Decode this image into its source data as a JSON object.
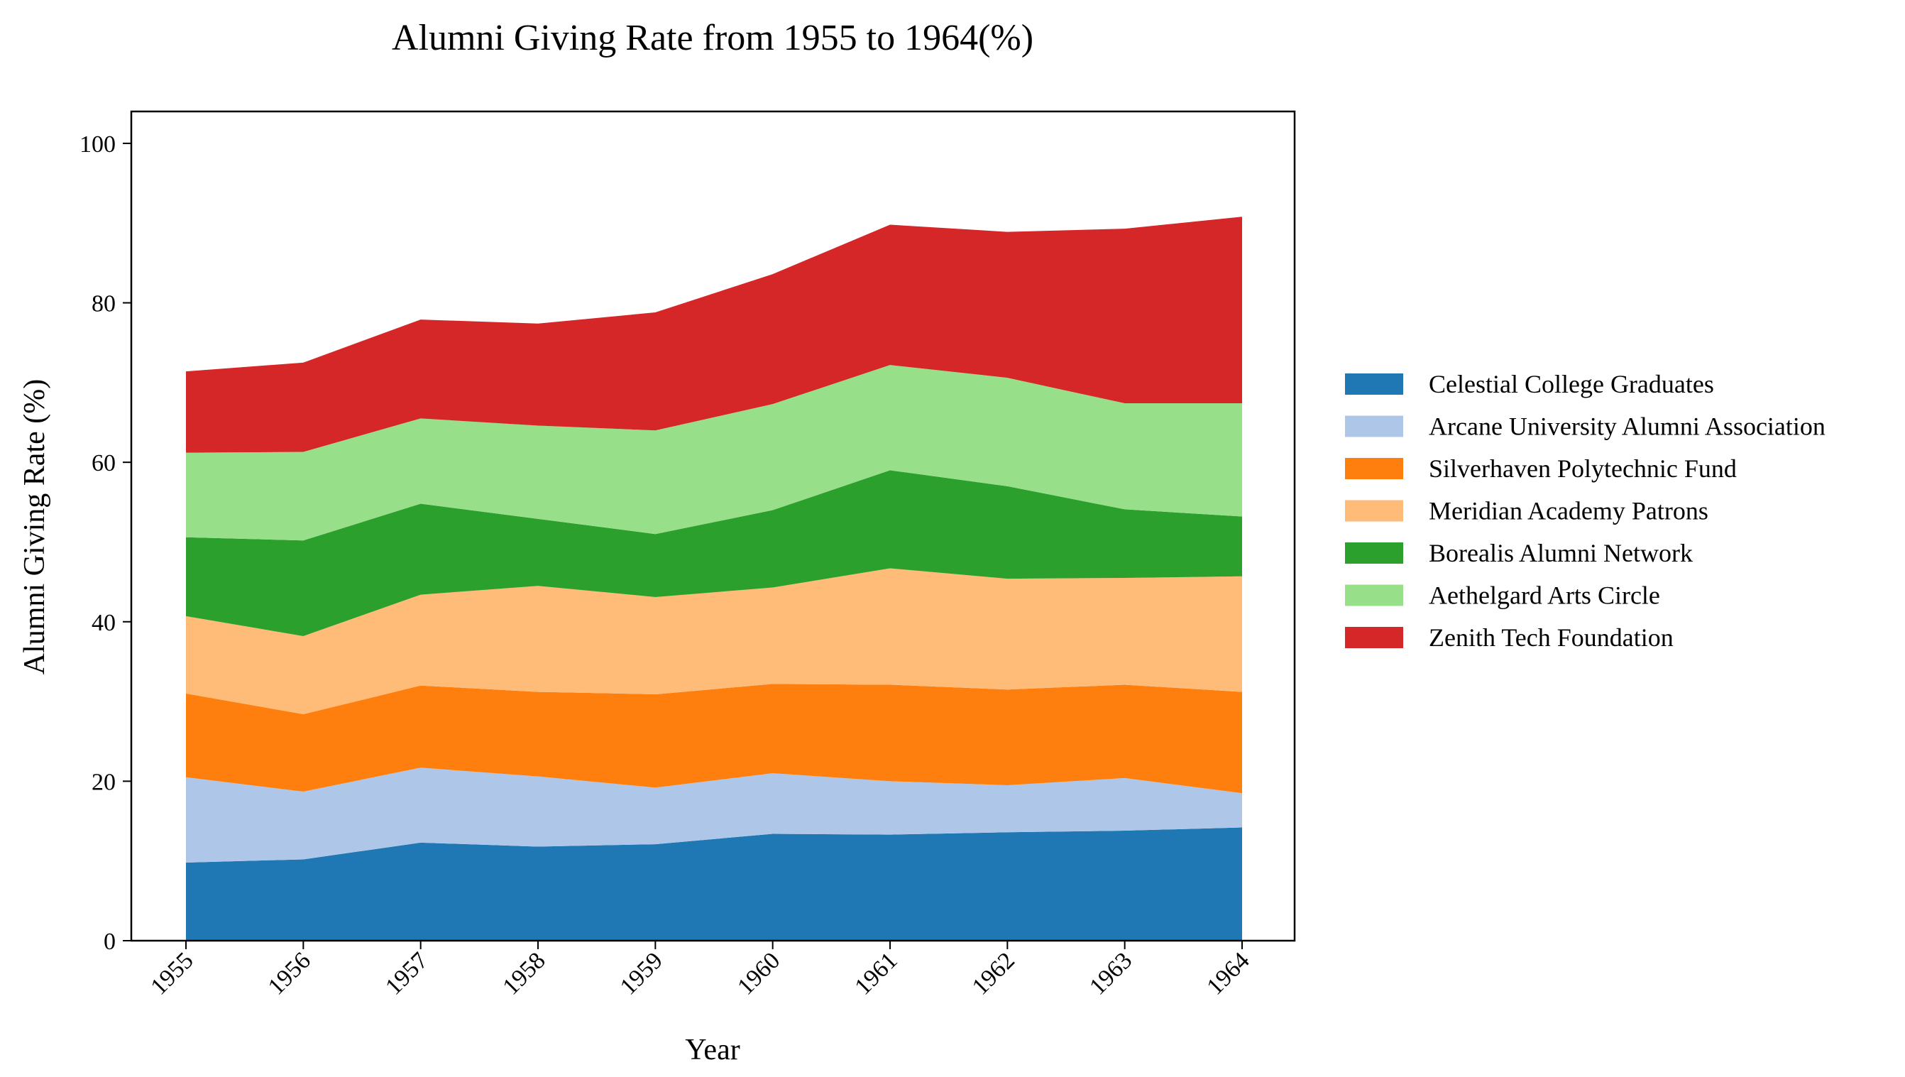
{
  "chart_data": {
    "type": "area",
    "stacked": true,
    "title": "Alumni Giving Rate from 1955 to 1964(%)",
    "xlabel": "Year",
    "ylabel": "Alumni Giving Rate (%)",
    "ylim": [
      0,
      104
    ],
    "yticks": [
      0,
      20,
      40,
      60,
      80,
      100
    ],
    "grid": false,
    "legend_position": "right",
    "categories": [
      "1955",
      "1956",
      "1957",
      "1958",
      "1959",
      "1960",
      "1961",
      "1962",
      "1963",
      "1964"
    ],
    "series": [
      {
        "name": "Celestial College Graduates",
        "color": "#1f77b4",
        "values": [
          9.8,
          10.2,
          12.3,
          11.8,
          12.1,
          13.4,
          13.3,
          13.6,
          13.8,
          14.2
        ]
      },
      {
        "name": "Arcane University Alumni Association",
        "color": "#aec7e8",
        "values": [
          10.7,
          8.5,
          9.4,
          8.8,
          7.1,
          7.6,
          6.7,
          5.9,
          6.6,
          4.3
        ]
      },
      {
        "name": "Silverhaven Polytechnic Fund",
        "color": "#ff7f0e",
        "values": [
          10.5,
          9.7,
          10.3,
          10.6,
          11.7,
          11.2,
          12.1,
          12.0,
          11.7,
          12.7
        ]
      },
      {
        "name": "Meridian Academy Patrons",
        "color": "#ffbb78",
        "values": [
          9.7,
          9.8,
          11.4,
          13.3,
          12.2,
          12.1,
          14.6,
          13.9,
          13.4,
          14.5
        ]
      },
      {
        "name": "Borealis Alumni Network",
        "color": "#2ca02c",
        "values": [
          9.9,
          12.0,
          11.4,
          8.4,
          7.9,
          9.7,
          12.3,
          11.6,
          8.6,
          7.5
        ]
      },
      {
        "name": "Aethelgard Arts Circle",
        "color": "#98df8a",
        "values": [
          10.6,
          11.1,
          10.7,
          11.7,
          13.0,
          13.3,
          13.2,
          13.6,
          13.3,
          14.2
        ]
      },
      {
        "name": "Zenith Tech Foundation",
        "color": "#d62728",
        "values": [
          10.2,
          11.2,
          12.4,
          12.8,
          14.8,
          16.3,
          17.6,
          18.3,
          21.9,
          23.4
        ]
      }
    ]
  }
}
